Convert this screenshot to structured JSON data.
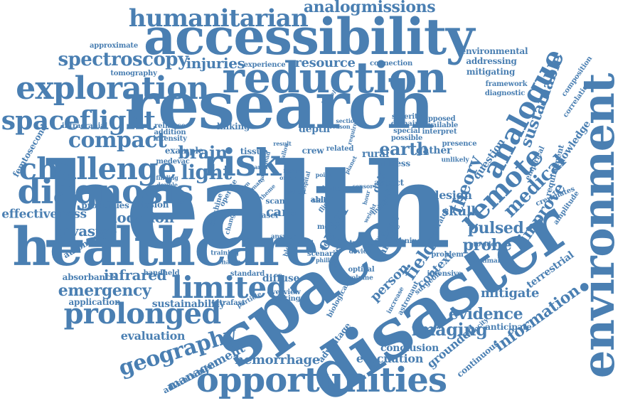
{
  "colors": {
    "word": "#4a7fb2",
    "background": "#ffffff"
  },
  "words": [
    {
      "text": "health"
    },
    {
      "text": "research"
    },
    {
      "text": "disaster"
    },
    {
      "text": "space"
    },
    {
      "text": "healthcare"
    },
    {
      "text": "environment"
    },
    {
      "text": "accessibility"
    },
    {
      "text": "reduction"
    },
    {
      "text": "exploration"
    },
    {
      "text": "opportunities"
    },
    {
      "text": "diagnosis"
    },
    {
      "text": "challenge"
    },
    {
      "text": "risk"
    },
    {
      "text": "spaceflight"
    },
    {
      "text": "humanitarian"
    },
    {
      "text": "prolonged"
    },
    {
      "text": "limited"
    },
    {
      "text": "analogue"
    },
    {
      "text": "remote"
    },
    {
      "text": "compact"
    },
    {
      "text": "geography"
    },
    {
      "text": "spectroscopy"
    },
    {
      "text": "light"
    },
    {
      "text": "brain"
    },
    {
      "text": "earth"
    },
    {
      "text": "analog"
    },
    {
      "text": "missions"
    },
    {
      "text": "emergency"
    },
    {
      "text": "infrared"
    },
    {
      "text": "invasive"
    },
    {
      "text": "location"
    },
    {
      "text": "effectiveness"
    },
    {
      "text": "injuries"
    },
    {
      "text": "resource"
    },
    {
      "text": "medical"
    },
    {
      "text": "outer"
    },
    {
      "text": "theory"
    },
    {
      "text": "sustainable"
    },
    {
      "text": "environmental"
    },
    {
      "text": "addressing"
    },
    {
      "text": "mitigating"
    },
    {
      "text": "imaging"
    },
    {
      "text": "evidence"
    },
    {
      "text": "information"
    },
    {
      "text": "hemorrhage"
    },
    {
      "text": "evacuation"
    },
    {
      "text": "conclusion"
    },
    {
      "text": "management"
    },
    {
      "text": "pulsed"
    },
    {
      "text": "probe"
    },
    {
      "text": "improve"
    },
    {
      "text": "knowledge"
    },
    {
      "text": "field"
    },
    {
      "text": "person"
    },
    {
      "text": "care"
    },
    {
      "text": "skull"
    },
    {
      "text": "design"
    },
    {
      "text": "depth"
    },
    {
      "text": "tissue"
    },
    {
      "text": "data"
    },
    {
      "text": "mitigate"
    },
    {
      "text": "terrestrial"
    },
    {
      "text": "diffuse"
    },
    {
      "text": "sustainability"
    },
    {
      "text": "evaluation"
    },
    {
      "text": "application"
    },
    {
      "text": "absorbance"
    },
    {
      "text": "properties"
    },
    {
      "text": "mission"
    },
    {
      "text": "femtosecond"
    },
    {
      "text": "tomography"
    },
    {
      "text": "approximate"
    },
    {
      "text": "experience"
    },
    {
      "text": "connection"
    },
    {
      "text": "framework"
    },
    {
      "text": "diagnostic"
    },
    {
      "text": "composition"
    },
    {
      "text": "correlation"
    },
    {
      "text": "question"
    },
    {
      "text": "context"
    },
    {
      "text": "grounded"
    },
    {
      "text": "continuous"
    },
    {
      "text": "anticipate"
    },
    {
      "text": "advancement"
    },
    {
      "text": "advantage"
    },
    {
      "text": "gather"
    },
    {
      "text": "presence"
    },
    {
      "text": "opposed"
    },
    {
      "text": "available"
    },
    {
      "text": "interpret"
    },
    {
      "text": "severity"
    },
    {
      "text": "domain"
    },
    {
      "text": "special"
    },
    {
      "text": "possible"
    },
    {
      "text": "intracranial"
    },
    {
      "text": "reliance"
    },
    {
      "text": "addition"
    },
    {
      "text": "intensity"
    },
    {
      "text": "linking"
    },
    {
      "text": "example"
    },
    {
      "text": "medevac"
    },
    {
      "text": "autonomy"
    },
    {
      "text": "finding"
    },
    {
      "text": "double"
    },
    {
      "text": "handheld"
    },
    {
      "text": "standard"
    },
    {
      "text": "overview"
    },
    {
      "text": "making"
    },
    {
      "text": "ultrafast"
    },
    {
      "text": "particle"
    },
    {
      "text": "biological"
    },
    {
      "text": "optical"
    },
    {
      "text": "volume"
    },
    {
      "text": "device"
    },
    {
      "text": "travel"
    },
    {
      "text": "scenario"
    },
    {
      "text": "officer"
    },
    {
      "text": "planning"
    },
    {
      "text": "problem"
    },
    {
      "text": "intensive"
    },
    {
      "text": "surgeon"
    },
    {
      "text": "astronaut"
    },
    {
      "text": "increase"
    },
    {
      "text": "velocity"
    },
    {
      "text": "generator"
    },
    {
      "text": "crewmates"
    },
    {
      "text": "amplitude"
    },
    {
      "text": "requirement"
    },
    {
      "text": "empirical"
    },
    {
      "text": "provider"
    },
    {
      "text": "maximal"
    },
    {
      "text": "unlikely"
    },
    {
      "text": "article"
    },
    {
      "text": "injury"
    },
    {
      "text": "aspect"
    },
    {
      "text": "signific"
    },
    {
      "text": "illness"
    },
    {
      "text": "living"
    },
    {
      "text": "laser"
    },
    {
      "text": "scan"
    },
    {
      "text": "able"
    },
    {
      "text": "flight"
    },
    {
      "text": "time"
    },
    {
      "text": "more"
    },
    {
      "text": "need"
    },
    {
      "text": "crew"
    },
    {
      "text": "rural"
    },
    {
      "text": "related"
    },
    {
      "text": "machine"
    },
    {
      "text": "operate"
    },
    {
      "text": "change"
    },
    {
      "text": "training"
    },
    {
      "text": "enable"
    },
    {
      "text": "answer"
    },
    {
      "text": "blood"
    },
    {
      "text": "phillip"
    },
    {
      "text": "present"
    },
    {
      "text": "result"
    },
    {
      "text": "allow"
    },
    {
      "text": "travel"
    },
    {
      "text": "section"
    },
    {
      "text": "reason"
    },
    {
      "text": "require"
    },
    {
      "text": "planet"
    },
    {
      "text": "order"
    },
    {
      "text": "point"
    },
    {
      "text": "hour"
    },
    {
      "text": "sensor"
    },
    {
      "text": "harm"
    },
    {
      "text": "theme"
    },
    {
      "text": "hospital"
    },
    {
      "text": "detect"
    },
    {
      "text": "focus"
    },
    {
      "text": "weight"
    },
    {
      "text": "many"
    },
    {
      "text": "area"
    },
    {
      "text": "lead"
    },
    {
      "text": "team"
    },
    {
      "text": "skill"
    }
  ]
}
